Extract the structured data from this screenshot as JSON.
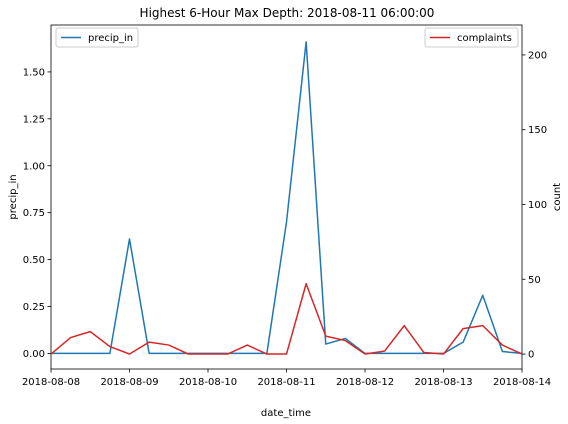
{
  "chart_data": {
    "type": "line",
    "title": "Highest 6-Hour Max Depth: 2018-08-11 06:00:00",
    "xlabel": "date_time",
    "ylabel_left": "precip_in",
    "ylabel_right": "count",
    "x_tick_labels": [
      "2018-08-08",
      "2018-08-09",
      "2018-08-10",
      "2018-08-11",
      "2018-08-12",
      "2018-08-13",
      "2018-08-14"
    ],
    "x": [
      "2018-08-08 00:00",
      "2018-08-08 06:00",
      "2018-08-08 12:00",
      "2018-08-08 18:00",
      "2018-08-09 00:00",
      "2018-08-09 06:00",
      "2018-08-09 12:00",
      "2018-08-09 18:00",
      "2018-08-10 00:00",
      "2018-08-10 06:00",
      "2018-08-10 12:00",
      "2018-08-10 18:00",
      "2018-08-11 00:00",
      "2018-08-11 06:00",
      "2018-08-11 12:00",
      "2018-08-11 18:00",
      "2018-08-12 00:00",
      "2018-08-12 06:00",
      "2018-08-12 12:00",
      "2018-08-12 18:00",
      "2018-08-13 00:00",
      "2018-08-13 06:00",
      "2018-08-13 12:00",
      "2018-08-13 18:00",
      "2018-08-14 00:00"
    ],
    "xlim": [
      "2018-08-08",
      "2018-08-14"
    ],
    "ylim_left": [
      -0.083,
      1.75
    ],
    "ylim_right": [
      -10,
      220
    ],
    "left_ticks": [
      "0.00",
      "0.25",
      "0.50",
      "0.75",
      "1.00",
      "1.25",
      "1.50"
    ],
    "right_ticks": [
      "0",
      "50",
      "100",
      "150",
      "200"
    ],
    "series": [
      {
        "name": "precip_in",
        "axis": "left",
        "color": "#1f77b4",
        "values": [
          0,
          0,
          0,
          0,
          0.61,
          0,
          0,
          0,
          0,
          0,
          0,
          0,
          0.7,
          1.66,
          0.05,
          0.08,
          0,
          0,
          0,
          0,
          0,
          0.06,
          0.31,
          0.01,
          0
        ]
      },
      {
        "name": "complaints",
        "axis": "right",
        "color": "#d62728",
        "values": [
          0,
          11,
          15,
          5,
          0,
          8,
          6,
          0,
          0,
          0,
          6,
          0,
          0,
          47,
          12,
          9,
          0,
          2,
          19,
          1,
          0,
          17,
          19,
          6,
          0
        ]
      }
    ],
    "grid": false,
    "legend_left": "top-left",
    "legend_right": "top-right"
  }
}
